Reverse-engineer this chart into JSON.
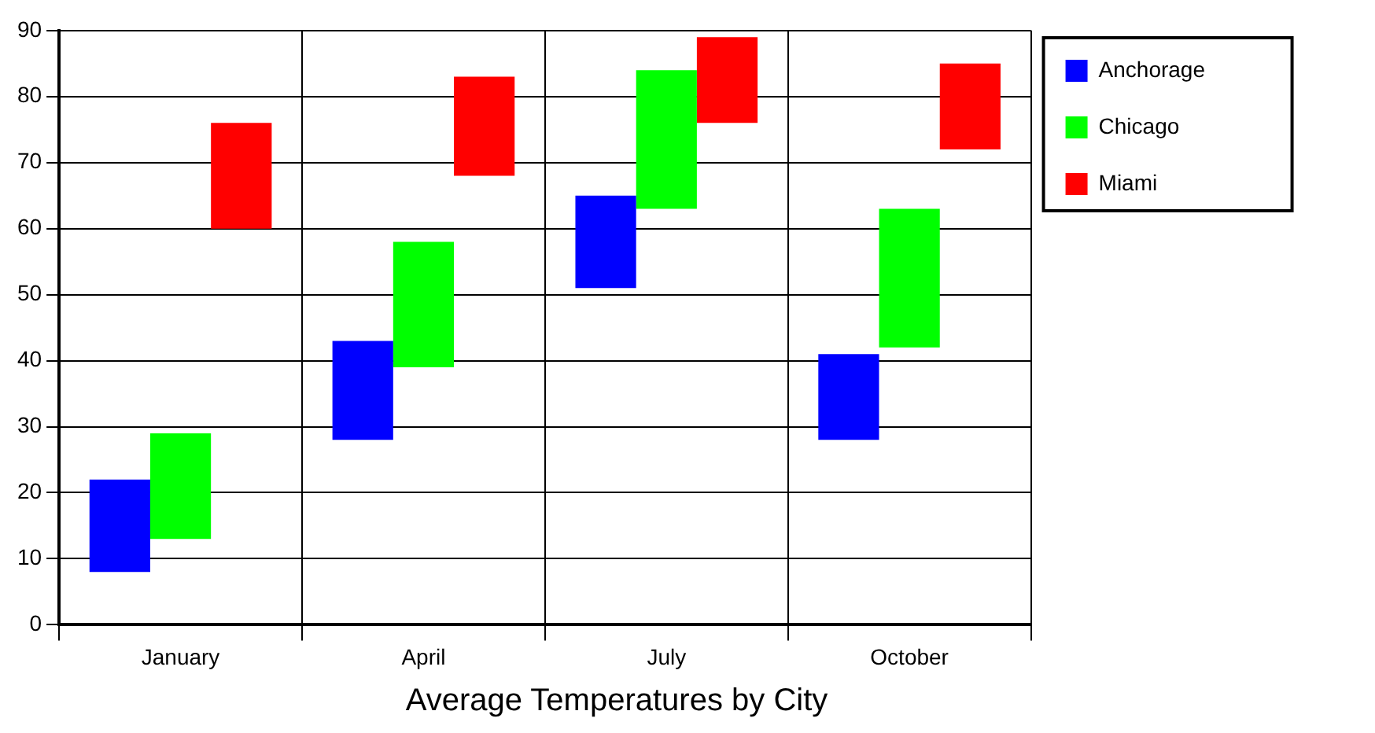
{
  "chart_data": {
    "type": "bar",
    "title": "Average Temperatures by City",
    "categories": [
      "January",
      "April",
      "July",
      "October"
    ],
    "series": [
      {
        "name": "Anchorage",
        "color": "#0000ff",
        "base": [
          8,
          28,
          51,
          28
        ],
        "values": [
          14,
          15,
          14,
          13
        ]
      },
      {
        "name": "Chicago",
        "color": "#00ff00",
        "base": [
          13,
          39,
          63,
          42
        ],
        "values": [
          16,
          19,
          21,
          21
        ]
      },
      {
        "name": "Miami",
        "color": "#ff0000",
        "base": [
          60,
          68,
          76,
          72
        ],
        "values": [
          16,
          15,
          13,
          13
        ]
      }
    ],
    "ylim": [
      0,
      90
    ],
    "yticks": [
      0,
      10,
      20,
      30,
      40,
      50,
      60,
      70,
      80,
      90
    ],
    "grid": true,
    "legend": "top right"
  }
}
